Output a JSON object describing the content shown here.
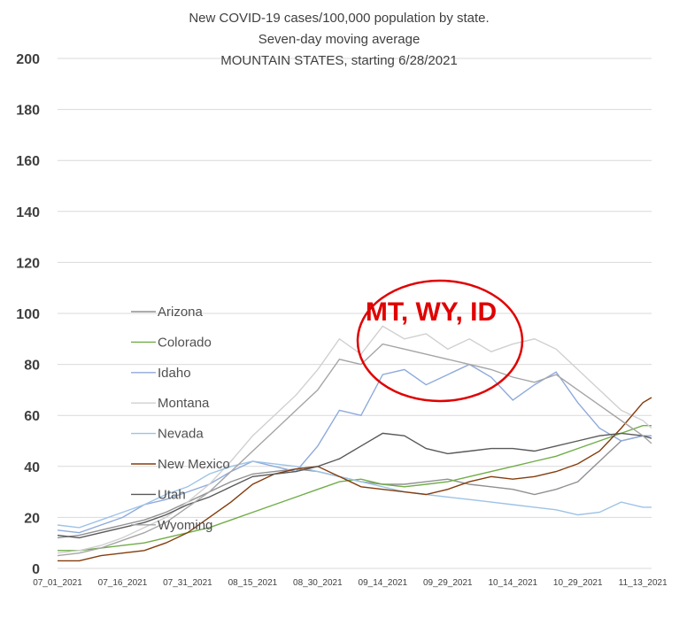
{
  "colors": {
    "Arizona": "#909090",
    "Colorado": "#70ad47",
    "Idaho": "#8faadc",
    "Montana": "#d0d0d0",
    "Nevada": "#9dc3e6",
    "New Mexico": "#843c0c",
    "Utah": "#595959",
    "Wyoming": "#a5a5a5",
    "annotation": "#e00000",
    "gridline": "#d9d9d9"
  },
  "chart_data": {
    "type": "line",
    "title_lines": [
      "New COVID-19 cases/100,000 population by state.",
      "Seven-day moving average",
      "MOUNTAIN STATES, starting 6/28/2021"
    ],
    "xlabel": "",
    "ylabel": "",
    "ylim": [
      0,
      200
    ],
    "yticks": [
      0,
      20,
      40,
      60,
      80,
      100,
      120,
      140,
      160,
      180,
      200
    ],
    "grid": true,
    "legend_position": "left-inside",
    "x_tick_labels": [
      "07_01_2021",
      "07_16_2021",
      "07_31_2021",
      "08_15_2021",
      "08_30_2021",
      "09_14_2021",
      "09_29_2021",
      "10_14_2021",
      "10_29_2021",
      "11_13_2021"
    ],
    "x_tick_days": [
      0,
      15,
      30,
      45,
      60,
      75,
      90,
      105,
      120,
      135
    ],
    "x_domain_days": [
      0,
      137
    ],
    "annotation": "MT, WY, ID",
    "series": [
      {
        "name": "Arizona",
        "x": [
          0,
          5,
          10,
          15,
          20,
          25,
          30,
          35,
          40,
          45,
          50,
          55,
          60,
          65,
          70,
          75,
          80,
          85,
          90,
          95,
          100,
          105,
          110,
          115,
          120,
          125,
          130,
          135,
          137
        ],
        "values": [
          12,
          13,
          15,
          17,
          19,
          22,
          26,
          30,
          34,
          37,
          38,
          39,
          38,
          36,
          34,
          33,
          33,
          34,
          35,
          33,
          32,
          31,
          29,
          31,
          34,
          42,
          50,
          52,
          52
        ]
      },
      {
        "name": "Colorado",
        "x": [
          0,
          5,
          10,
          15,
          20,
          25,
          30,
          35,
          40,
          45,
          50,
          55,
          60,
          65,
          70,
          75,
          80,
          85,
          90,
          95,
          100,
          105,
          110,
          115,
          120,
          125,
          130,
          135,
          137
        ],
        "values": [
          7,
          7,
          8,
          9,
          10,
          12,
          14,
          16,
          19,
          22,
          25,
          28,
          31,
          34,
          35,
          33,
          32,
          33,
          34,
          36,
          38,
          40,
          42,
          44,
          47,
          50,
          53,
          56,
          56
        ]
      },
      {
        "name": "Idaho",
        "x": [
          0,
          5,
          10,
          15,
          20,
          25,
          30,
          35,
          40,
          45,
          50,
          55,
          60,
          65,
          70,
          75,
          80,
          85,
          90,
          95,
          100,
          105,
          110,
          115,
          120,
          125,
          130,
          135,
          137
        ],
        "values": [
          15,
          14,
          17,
          20,
          25,
          27,
          30,
          33,
          38,
          42,
          40,
          38,
          48,
          62,
          60,
          76,
          78,
          72,
          76,
          80,
          75,
          66,
          72,
          77,
          65,
          55,
          50,
          52,
          52
        ]
      },
      {
        "name": "Montana",
        "x": [
          0,
          5,
          10,
          15,
          20,
          25,
          30,
          35,
          40,
          45,
          50,
          55,
          60,
          65,
          70,
          75,
          80,
          85,
          90,
          95,
          100,
          105,
          110,
          115,
          120,
          125,
          130,
          135,
          137
        ],
        "values": [
          6,
          7,
          9,
          12,
          16,
          20,
          26,
          33,
          42,
          52,
          60,
          68,
          78,
          90,
          84,
          95,
          90,
          92,
          86,
          90,
          85,
          88,
          90,
          86,
          78,
          70,
          62,
          58,
          55
        ]
      },
      {
        "name": "Nevada",
        "x": [
          0,
          5,
          10,
          15,
          20,
          25,
          30,
          35,
          40,
          45,
          50,
          55,
          60,
          65,
          70,
          75,
          80,
          85,
          90,
          95,
          100,
          105,
          110,
          115,
          120,
          125,
          130,
          135,
          137
        ],
        "values": [
          17,
          16,
          19,
          22,
          25,
          29,
          32,
          37,
          40,
          42,
          41,
          40,
          38,
          36,
          34,
          32,
          30,
          29,
          28,
          27,
          26,
          25,
          24,
          23,
          21,
          22,
          26,
          24,
          24
        ]
      },
      {
        "name": "New Mexico",
        "x": [
          0,
          5,
          10,
          15,
          20,
          25,
          30,
          35,
          40,
          45,
          50,
          55,
          60,
          65,
          70,
          75,
          80,
          85,
          90,
          95,
          100,
          105,
          110,
          115,
          120,
          125,
          130,
          135,
          137
        ],
        "values": [
          3,
          3,
          5,
          6,
          7,
          10,
          14,
          20,
          26,
          33,
          37,
          39,
          40,
          36,
          32,
          31,
          30,
          29,
          31,
          34,
          36,
          35,
          36,
          38,
          41,
          46,
          55,
          65,
          67
        ]
      },
      {
        "name": "Utah",
        "x": [
          0,
          5,
          10,
          15,
          20,
          25,
          30,
          35,
          40,
          45,
          50,
          55,
          60,
          65,
          70,
          75,
          80,
          85,
          90,
          95,
          100,
          105,
          110,
          115,
          120,
          125,
          130,
          135,
          137
        ],
        "values": [
          13,
          12,
          14,
          16,
          18,
          21,
          25,
          28,
          32,
          36,
          37,
          38,
          40,
          43,
          48,
          53,
          52,
          47,
          45,
          46,
          47,
          47,
          46,
          48,
          50,
          52,
          53,
          52,
          51
        ]
      },
      {
        "name": "Wyoming",
        "x": [
          0,
          5,
          10,
          15,
          20,
          25,
          30,
          35,
          40,
          45,
          50,
          55,
          60,
          65,
          70,
          75,
          80,
          85,
          90,
          95,
          100,
          105,
          110,
          115,
          120,
          125,
          130,
          135,
          137
        ],
        "values": [
          5,
          6,
          8,
          11,
          14,
          18,
          24,
          30,
          38,
          46,
          54,
          62,
          70,
          82,
          80,
          88,
          86,
          84,
          82,
          80,
          78,
          75,
          73,
          76,
          70,
          64,
          58,
          52,
          49
        ]
      }
    ]
  }
}
